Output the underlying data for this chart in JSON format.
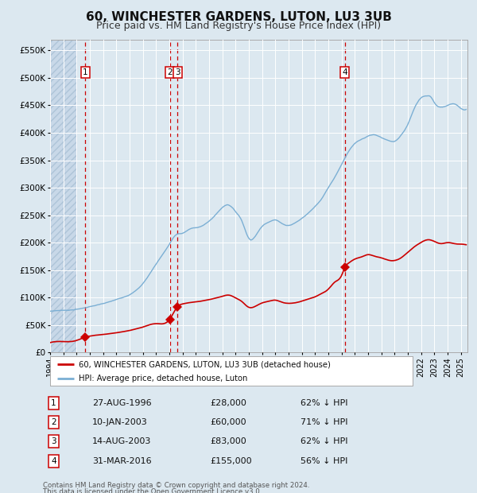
{
  "title": "60, WINCHESTER GARDENS, LUTON, LU3 3UB",
  "subtitle": "Price paid vs. HM Land Registry's House Price Index (HPI)",
  "title_fontsize": 11,
  "subtitle_fontsize": 9,
  "ylabel_ticks": [
    "£0",
    "£50K",
    "£100K",
    "£150K",
    "£200K",
    "£250K",
    "£300K",
    "£350K",
    "£400K",
    "£450K",
    "£500K",
    "£550K"
  ],
  "ytick_vals": [
    0,
    50000,
    100000,
    150000,
    200000,
    250000,
    300000,
    350000,
    400000,
    450000,
    500000,
    550000
  ],
  "ylim": [
    0,
    570000
  ],
  "xlim_start": 1994.0,
  "xlim_end": 2025.5,
  "bg_color": "#dce8f0",
  "grid_color": "#ffffff",
  "sale_color": "#cc0000",
  "hpi_color": "#7bafd4",
  "dashed_line_color": "#cc0000",
  "hpi_points": [
    [
      1994.0,
      75000
    ],
    [
      1995.0,
      77000
    ],
    [
      1996.0,
      79000
    ],
    [
      1997.0,
      84000
    ],
    [
      1998.0,
      89000
    ],
    [
      1999.0,
      96000
    ],
    [
      2000.0,
      106000
    ],
    [
      2001.0,
      126000
    ],
    [
      2002.0,
      162000
    ],
    [
      2003.0,
      198000
    ],
    [
      2003.5,
      215000
    ],
    [
      2004.0,
      218000
    ],
    [
      2004.5,
      225000
    ],
    [
      2005.0,
      228000
    ],
    [
      2005.5,
      232000
    ],
    [
      2006.0,
      240000
    ],
    [
      2006.5,
      252000
    ],
    [
      2007.0,
      265000
    ],
    [
      2007.5,
      270000
    ],
    [
      2008.0,
      258000
    ],
    [
      2008.5,
      240000
    ],
    [
      2009.0,
      210000
    ],
    [
      2009.5,
      215000
    ],
    [
      2010.0,
      232000
    ],
    [
      2010.5,
      240000
    ],
    [
      2011.0,
      245000
    ],
    [
      2011.5,
      238000
    ],
    [
      2012.0,
      235000
    ],
    [
      2012.5,
      240000
    ],
    [
      2013.0,
      248000
    ],
    [
      2013.5,
      258000
    ],
    [
      2014.0,
      270000
    ],
    [
      2014.5,
      285000
    ],
    [
      2015.0,
      305000
    ],
    [
      2015.5,
      325000
    ],
    [
      2016.0,
      348000
    ],
    [
      2016.5,
      370000
    ],
    [
      2017.0,
      385000
    ],
    [
      2017.5,
      392000
    ],
    [
      2018.0,
      398000
    ],
    [
      2018.5,
      400000
    ],
    [
      2019.0,
      395000
    ],
    [
      2019.5,
      390000
    ],
    [
      2020.0,
      388000
    ],
    [
      2020.5,
      400000
    ],
    [
      2021.0,
      420000
    ],
    [
      2021.5,
      450000
    ],
    [
      2022.0,
      468000
    ],
    [
      2022.5,
      472000
    ],
    [
      2022.75,
      470000
    ],
    [
      2023.0,
      460000
    ],
    [
      2023.5,
      452000
    ],
    [
      2024.0,
      455000
    ],
    [
      2024.5,
      458000
    ],
    [
      2025.0,
      450000
    ],
    [
      2025.4,
      448000
    ]
  ],
  "sale_points": [
    [
      1994.0,
      18000
    ],
    [
      1995.0,
      20000
    ],
    [
      1996.0,
      22000
    ],
    [
      1996.65,
      28000
    ],
    [
      1997.0,
      30000
    ],
    [
      1998.0,
      33000
    ],
    [
      1999.0,
      36000
    ],
    [
      2000.0,
      40000
    ],
    [
      2001.0,
      46000
    ],
    [
      2002.0,
      52000
    ],
    [
      2003.03,
      60000
    ],
    [
      2003.62,
      83000
    ],
    [
      2004.0,
      88000
    ],
    [
      2005.0,
      92000
    ],
    [
      2006.0,
      96000
    ],
    [
      2007.0,
      102000
    ],
    [
      2007.5,
      104000
    ],
    [
      2008.0,
      99000
    ],
    [
      2008.5,
      92000
    ],
    [
      2009.0,
      82000
    ],
    [
      2009.5,
      84000
    ],
    [
      2010.0,
      90000
    ],
    [
      2010.5,
      93000
    ],
    [
      2011.0,
      95000
    ],
    [
      2011.5,
      91000
    ],
    [
      2012.0,
      89000
    ],
    [
      2012.5,
      90000
    ],
    [
      2013.0,
      93000
    ],
    [
      2013.5,
      97000
    ],
    [
      2014.0,
      101000
    ],
    [
      2014.5,
      107000
    ],
    [
      2015.0,
      115000
    ],
    [
      2015.5,
      128000
    ],
    [
      2016.0,
      140000
    ],
    [
      2016.25,
      155000
    ],
    [
      2016.5,
      162000
    ],
    [
      2017.0,
      170000
    ],
    [
      2017.5,
      174000
    ],
    [
      2018.0,
      178000
    ],
    [
      2018.5,
      175000
    ],
    [
      2019.0,
      172000
    ],
    [
      2019.5,
      168000
    ],
    [
      2020.0,
      167000
    ],
    [
      2020.5,
      172000
    ],
    [
      2021.0,
      182000
    ],
    [
      2021.5,
      192000
    ],
    [
      2022.0,
      200000
    ],
    [
      2022.5,
      205000
    ],
    [
      2023.0,
      202000
    ],
    [
      2023.5,
      198000
    ],
    [
      2024.0,
      200000
    ],
    [
      2024.5,
      198000
    ],
    [
      2025.0,
      197000
    ],
    [
      2025.4,
      196000
    ]
  ],
  "purchases": [
    {
      "label": "1",
      "date_x": 1996.65,
      "price": 28000,
      "date_str": "27-AUG-1996",
      "price_str": "£28,000",
      "pct": "62% ↓ HPI"
    },
    {
      "label": "2",
      "date_x": 2003.03,
      "price": 60000,
      "date_str": "10-JAN-2003",
      "price_str": "£60,000",
      "pct": "71% ↓ HPI"
    },
    {
      "label": "3",
      "date_x": 2003.62,
      "price": 83000,
      "date_str": "14-AUG-2003",
      "price_str": "£83,000",
      "pct": "62% ↓ HPI"
    },
    {
      "label": "4",
      "date_x": 2016.25,
      "price": 155000,
      "date_str": "31-MAR-2016",
      "price_str": "£155,000",
      "pct": "56% ↓ HPI"
    }
  ],
  "legend_label_sale": "60, WINCHESTER GARDENS, LUTON, LU3 3UB (detached house)",
  "legend_label_hpi": "HPI: Average price, detached house, Luton",
  "footer1": "Contains HM Land Registry data © Crown copyright and database right 2024.",
  "footer2": "This data is licensed under the Open Government Licence v3.0."
}
